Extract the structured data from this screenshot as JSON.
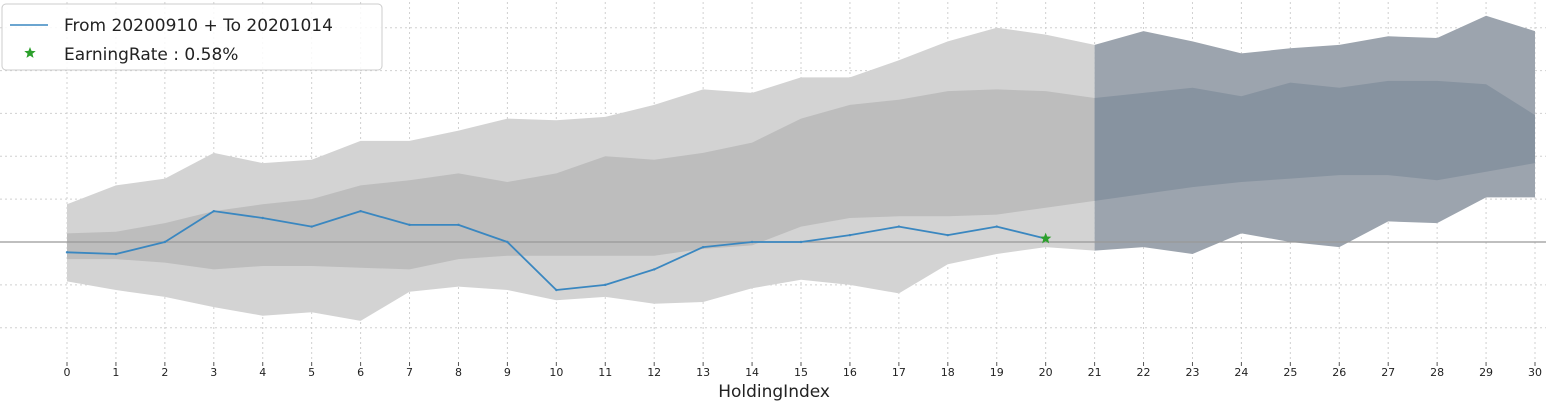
{
  "chart_data": {
    "type": "line",
    "xlabel": "HoldingIndex",
    "ylabel": "",
    "title": "",
    "x_ticks": [
      0,
      1,
      2,
      3,
      4,
      5,
      6,
      7,
      8,
      9,
      10,
      11,
      12,
      13,
      14,
      15,
      16,
      17,
      18,
      19,
      20,
      21,
      22,
      23,
      24,
      25,
      26,
      27,
      28,
      29,
      30
    ],
    "xlim": [
      0,
      30
    ],
    "ylim": [
      -0.7,
      1.4
    ],
    "grid": true,
    "legend_position": "top-left",
    "legend": [
      {
        "label": "From 20200910 + To 20201014",
        "marker": "line",
        "color": "#3a87c0"
      },
      {
        "label": "EarningRate : 0.58%",
        "marker": "star",
        "color": "#2ca02c"
      }
    ],
    "series": [
      {
        "name": "From 20200910 + To 20201014",
        "color": "#3a87c0",
        "x": [
          0,
          1,
          2,
          3,
          4,
          5,
          6,
          7,
          8,
          9,
          10,
          11,
          12,
          13,
          14,
          15,
          16,
          17,
          18,
          19,
          20
        ],
        "y": [
          -0.06,
          -0.07,
          0.0,
          0.18,
          0.14,
          0.09,
          0.18,
          0.1,
          0.1,
          0.0,
          -0.28,
          -0.25,
          -0.16,
          -0.03,
          0.0,
          0.0,
          0.04,
          0.09,
          0.04,
          0.09,
          0.02
        ]
      }
    ],
    "bands": [
      {
        "name": "outer-band-in-sample",
        "color": "#d3d3d3",
        "x": [
          0,
          1,
          2,
          3,
          4,
          5,
          6,
          7,
          8,
          9,
          10,
          11,
          12,
          13,
          14,
          15,
          16,
          17,
          18,
          19,
          20,
          21
        ],
        "upper": [
          0.22,
          0.33,
          0.37,
          0.52,
          0.46,
          0.48,
          0.59,
          0.59,
          0.65,
          0.72,
          0.71,
          0.73,
          0.8,
          0.89,
          0.87,
          0.96,
          0.96,
          1.06,
          1.17,
          1.25,
          1.21,
          1.15
        ],
        "lower": [
          -0.23,
          -0.28,
          -0.32,
          -0.38,
          -0.43,
          -0.41,
          -0.46,
          -0.29,
          -0.26,
          -0.28,
          -0.34,
          -0.32,
          -0.36,
          -0.35,
          -0.27,
          -0.22,
          -0.25,
          -0.3,
          -0.13,
          -0.07,
          -0.03,
          -0.05
        ]
      },
      {
        "name": "inner-band-in-sample",
        "color": "#bdbdbd",
        "x": [
          0,
          1,
          2,
          3,
          4,
          5,
          6,
          7,
          8,
          9,
          10,
          11,
          12,
          13,
          14,
          15,
          16,
          17,
          18,
          19,
          20,
          21
        ],
        "upper": [
          0.05,
          0.06,
          0.11,
          0.18,
          0.22,
          0.25,
          0.33,
          0.36,
          0.4,
          0.35,
          0.4,
          0.5,
          0.48,
          0.52,
          0.58,
          0.72,
          0.8,
          0.83,
          0.88,
          0.89,
          0.88,
          0.84
        ],
        "lower": [
          -0.1,
          -0.1,
          -0.12,
          -0.16,
          -0.14,
          -0.14,
          -0.15,
          -0.16,
          -0.1,
          -0.08,
          -0.08,
          -0.08,
          -0.08,
          -0.04,
          -0.02,
          0.09,
          0.14,
          0.15,
          0.15,
          0.16,
          0.2,
          0.24
        ]
      },
      {
        "name": "outer-band-forecast",
        "color": "#9ca4ae",
        "x": [
          21,
          22,
          23,
          24,
          25,
          26,
          27,
          28,
          29,
          30
        ],
        "upper": [
          1.15,
          1.23,
          1.17,
          1.1,
          1.13,
          1.15,
          1.2,
          1.19,
          1.32,
          1.23
        ],
        "lower": [
          -0.05,
          -0.03,
          -0.07,
          0.05,
          0.0,
          -0.03,
          0.12,
          0.11,
          0.26,
          0.26
        ]
      },
      {
        "name": "inner-band-forecast",
        "color": "#8793a0",
        "x": [
          21,
          22,
          23,
          24,
          25,
          26,
          27,
          28,
          29,
          30
        ],
        "upper": [
          0.84,
          0.87,
          0.9,
          0.85,
          0.93,
          0.9,
          0.94,
          0.94,
          0.92,
          0.74
        ],
        "lower": [
          0.24,
          0.28,
          0.32,
          0.35,
          0.37,
          0.39,
          0.39,
          0.36,
          0.41,
          0.46
        ]
      }
    ],
    "markers": [
      {
        "name": "EarningRate : 0.58%",
        "shape": "star",
        "color": "#2ca02c",
        "x": 20,
        "y": 0.02
      }
    ],
    "reference_line": {
      "y": 0.0,
      "color": "#999999"
    }
  }
}
